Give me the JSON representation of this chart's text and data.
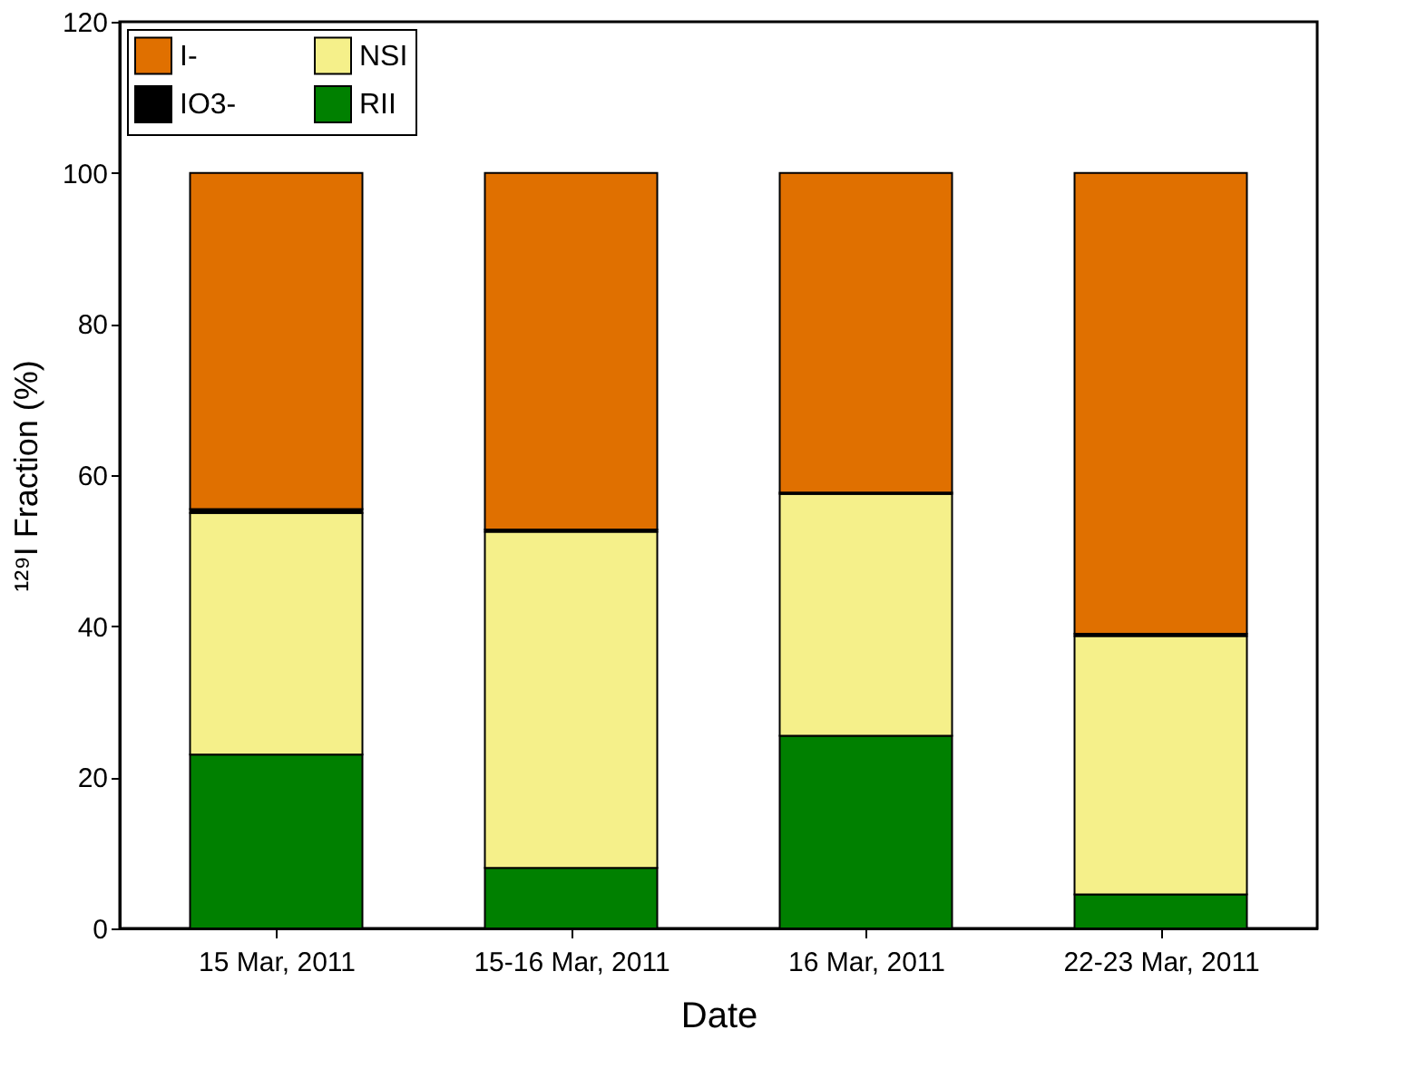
{
  "chart_data": {
    "type": "bar",
    "stacked": true,
    "xlabel": "Date",
    "ylabel": "¹²⁹I Fraction (%)",
    "categories": [
      "15 Mar, 2011",
      "15-16 Mar, 2011",
      "16 Mar, 2011",
      "22-23 Mar, 2011"
    ],
    "series": [
      {
        "name": "RII",
        "color": "#008000",
        "values": [
          23,
          8,
          25.5,
          4.5
        ]
      },
      {
        "name": "NSI",
        "color": "#f5f08a",
        "values": [
          32,
          44.5,
          32,
          34.2
        ]
      },
      {
        "name": "IO3-",
        "color": "#000000",
        "values": [
          0.5,
          0.3,
          0.2,
          0.3
        ]
      },
      {
        "name": "I-",
        "color": "#e07000",
        "values": [
          44.5,
          47.2,
          42.3,
          61
        ]
      }
    ],
    "ylim": [
      0,
      120
    ],
    "yticks": [
      0,
      20,
      40,
      60,
      80,
      100,
      120
    ],
    "grid": false,
    "legend": "top left"
  }
}
